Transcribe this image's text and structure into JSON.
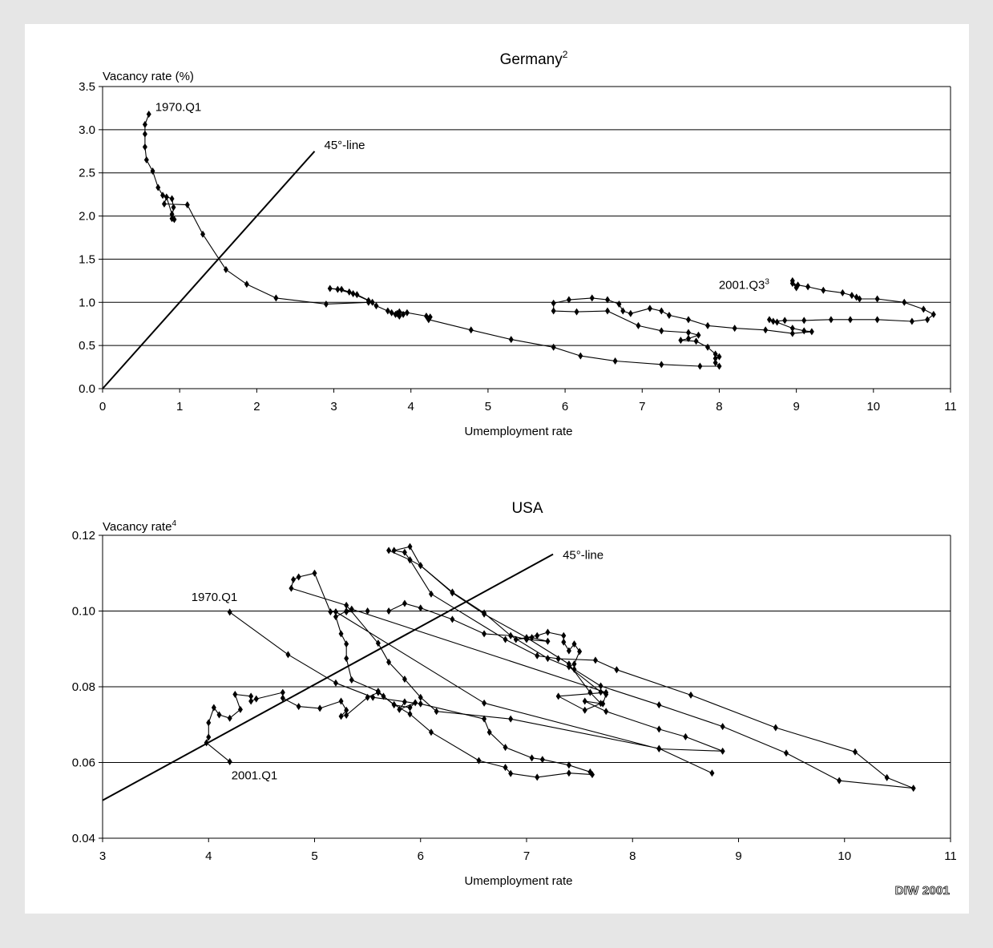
{
  "credit": "DIW 2001",
  "chart_data": [
    {
      "type": "line",
      "title": "Germany",
      "title_sup": "2",
      "xlabel": "Umemployment rate",
      "ylabel": "Vacancy rate (%)",
      "ylabel_sup": "",
      "xlim": [
        0,
        11
      ],
      "ylim": [
        0,
        3.5
      ],
      "xticks": [
        "0",
        "1",
        "2",
        "3",
        "4",
        "5",
        "6",
        "7",
        "8",
        "9",
        "10",
        "11"
      ],
      "yticks": [
        "0.0",
        "0.5",
        "1.0",
        "1.5",
        "2.0",
        "2.5",
        "3.0",
        "3.5"
      ],
      "grid": "horizontal",
      "reference_line": {
        "label": "45°-line",
        "from": [
          0,
          0
        ],
        "to": [
          2.75,
          2.75
        ]
      },
      "annotations": [
        {
          "text": "1970.Q1",
          "sup": "",
          "at": [
            0.6,
            3.18
          ]
        },
        {
          "text": "2001.Q3",
          "sup": "3",
          "at": [
            8.95,
            1.25
          ]
        }
      ],
      "series": [
        {
          "points": [
            [
              0.6,
              3.18
            ],
            [
              0.55,
              3.06
            ],
            [
              0.55,
              2.95
            ],
            [
              0.55,
              2.8
            ],
            [
              0.57,
              2.65
            ],
            [
              0.65,
              2.52
            ],
            [
              0.72,
              2.33
            ],
            [
              0.78,
              2.24
            ],
            [
              0.9,
              2.2
            ],
            [
              0.92,
              2.1
            ],
            [
              0.9,
              1.97
            ],
            [
              0.93,
              1.96
            ],
            [
              0.9,
              2.02
            ],
            [
              0.83,
              2.22
            ],
            [
              0.8,
              2.14
            ],
            [
              1.1,
              2.13
            ],
            [
              1.3,
              1.79
            ],
            [
              1.6,
              1.38
            ],
            [
              1.87,
              1.21
            ],
            [
              2.25,
              1.05
            ],
            [
              2.9,
              0.98
            ],
            [
              3.45,
              1.0
            ],
            [
              3.5,
              1.0
            ],
            [
              3.3,
              1.09
            ],
            [
              3.2,
              1.12
            ],
            [
              3.1,
              1.15
            ],
            [
              2.95,
              1.16
            ],
            [
              3.05,
              1.15
            ],
            [
              3.25,
              1.1
            ],
            [
              3.45,
              1.02
            ],
            [
              3.55,
              0.96
            ],
            [
              3.7,
              0.9
            ],
            [
              3.8,
              0.86
            ],
            [
              3.85,
              0.84
            ],
            [
              3.75,
              0.88
            ],
            [
              3.82,
              0.87
            ],
            [
              3.9,
              0.86
            ],
            [
              3.85,
              0.89
            ],
            [
              3.95,
              0.88
            ],
            [
              4.2,
              0.84
            ],
            [
              4.25,
              0.83
            ],
            [
              4.23,
              0.8
            ],
            [
              4.78,
              0.68
            ],
            [
              5.3,
              0.57
            ],
            [
              5.85,
              0.48
            ],
            [
              6.2,
              0.38
            ],
            [
              6.65,
              0.32
            ],
            [
              7.25,
              0.28
            ],
            [
              7.75,
              0.26
            ],
            [
              8.0,
              0.26
            ],
            [
              7.95,
              0.3
            ],
            [
              7.95,
              0.35
            ],
            [
              8.0,
              0.37
            ],
            [
              7.95,
              0.4
            ],
            [
              7.85,
              0.48
            ],
            [
              7.7,
              0.55
            ],
            [
              7.5,
              0.56
            ],
            [
              7.6,
              0.58
            ],
            [
              7.73,
              0.62
            ],
            [
              7.6,
              0.65
            ],
            [
              7.25,
              0.67
            ],
            [
              6.95,
              0.73
            ],
            [
              6.55,
              0.9
            ],
            [
              6.15,
              0.89
            ],
            [
              5.85,
              0.9
            ],
            [
              5.85,
              0.99
            ],
            [
              6.05,
              1.03
            ],
            [
              6.35,
              1.05
            ],
            [
              6.55,
              1.03
            ],
            [
              6.7,
              0.98
            ],
            [
              6.75,
              0.9
            ],
            [
              6.85,
              0.87
            ],
            [
              7.1,
              0.93
            ],
            [
              7.25,
              0.9
            ],
            [
              7.35,
              0.85
            ],
            [
              7.6,
              0.8
            ],
            [
              7.85,
              0.73
            ],
            [
              8.2,
              0.7
            ],
            [
              8.6,
              0.68
            ],
            [
              8.95,
              0.64
            ],
            [
              9.2,
              0.66
            ],
            [
              9.1,
              0.67
            ],
            [
              8.95,
              0.7
            ],
            [
              8.75,
              0.77
            ],
            [
              8.65,
              0.8
            ],
            [
              8.7,
              0.78
            ],
            [
              8.85,
              0.79
            ],
            [
              9.1,
              0.79
            ],
            [
              9.45,
              0.8
            ],
            [
              9.7,
              0.8
            ],
            [
              10.05,
              0.8
            ],
            [
              10.5,
              0.78
            ],
            [
              10.7,
              0.8
            ],
            [
              10.78,
              0.86
            ],
            [
              10.65,
              0.92
            ],
            [
              10.4,
              1.0
            ],
            [
              10.05,
              1.04
            ],
            [
              9.82,
              1.04
            ],
            [
              9.78,
              1.06
            ],
            [
              9.72,
              1.08
            ],
            [
              9.6,
              1.11
            ],
            [
              9.35,
              1.14
            ],
            [
              9.15,
              1.18
            ],
            [
              9.02,
              1.2
            ],
            [
              8.95,
              1.22
            ],
            [
              9.0,
              1.17
            ],
            [
              8.95,
              1.25
            ]
          ]
        }
      ]
    },
    {
      "type": "line",
      "title": "USA",
      "title_sup": "",
      "xlabel": "Umemployment rate",
      "ylabel": "Vacancy rate",
      "ylabel_sup": "4",
      "xlim": [
        3,
        11
      ],
      "ylim": [
        0.04,
        0.12
      ],
      "xticks": [
        "3",
        "4",
        "5",
        "6",
        "7",
        "8",
        "9",
        "10",
        "11"
      ],
      "yticks": [
        "0.04",
        "0.06",
        "0.08",
        "0.10",
        "0.12"
      ],
      "grid": "horizontal",
      "reference_line": {
        "label": "45°-line",
        "from": [
          3,
          0.05
        ],
        "to": [
          7.25,
          0.115
        ]
      },
      "annotations": [
        {
          "text": "1970.Q1",
          "sup": "",
          "at": [
            4.2,
            0.0997
          ]
        },
        {
          "text": "2001.Q1",
          "sup": "",
          "at": [
            4.2,
            0.0602
          ]
        }
      ],
      "series": [
        {
          "points": [
            [
              4.2,
              0.0997
            ],
            [
              4.75,
              0.0885
            ],
            [
              5.2,
              0.081
            ],
            [
              5.55,
              0.0772
            ],
            [
              6.0,
              0.0755
            ],
            [
              6.6,
              0.0715
            ],
            [
              6.65,
              0.068
            ],
            [
              6.8,
              0.064
            ],
            [
              7.05,
              0.0612
            ],
            [
              7.15,
              0.0608
            ],
            [
              7.4,
              0.0593
            ],
            [
              7.6,
              0.0575
            ],
            [
              7.62,
              0.0568
            ],
            [
              7.4,
              0.0572
            ],
            [
              7.1,
              0.0561
            ],
            [
              6.85,
              0.0571
            ],
            [
              6.8,
              0.0587
            ],
            [
              6.55,
              0.0605
            ],
            [
              6.1,
              0.068
            ],
            [
              5.9,
              0.0728
            ],
            [
              5.75,
              0.0753
            ],
            [
              5.6,
              0.0785
            ],
            [
              5.5,
              0.0772
            ],
            [
              5.3,
              0.0725
            ],
            [
              5.25,
              0.0722
            ],
            [
              5.3,
              0.0738
            ],
            [
              5.25,
              0.0762
            ],
            [
              5.05,
              0.0743
            ],
            [
              4.85,
              0.0748
            ],
            [
              4.7,
              0.077
            ],
            [
              4.7,
              0.0785
            ],
            [
              4.45,
              0.0768
            ],
            [
              4.4,
              0.0762
            ],
            [
              4.4,
              0.0775
            ],
            [
              4.25,
              0.078
            ],
            [
              4.3,
              0.074
            ],
            [
              4.2,
              0.0717
            ],
            [
              4.1,
              0.0726
            ],
            [
              4.05,
              0.0745
            ],
            [
              4.0,
              0.0705
            ],
            [
              4.0,
              0.0667
            ],
            [
              3.98,
              0.0652
            ],
            [
              4.2,
              0.0602
            ]
          ]
        },
        {
          "points": [
            [
              5.7,
              0.116
            ],
            [
              5.9,
              0.1135
            ],
            [
              6.0,
              0.112
            ],
            [
              6.3,
              0.105
            ],
            [
              6.6,
              0.0995
            ],
            [
              6.85,
              0.0935
            ],
            [
              7.0,
              0.0925
            ],
            [
              7.2,
              0.092
            ],
            [
              7.05,
              0.093
            ],
            [
              6.9,
              0.0925
            ],
            [
              7.1,
              0.0935
            ],
            [
              7.2,
              0.0944
            ],
            [
              7.35,
              0.0935
            ],
            [
              7.35,
              0.0918
            ],
            [
              7.4,
              0.0895
            ],
            [
              7.45,
              0.0913
            ],
            [
              7.5,
              0.0893
            ],
            [
              7.45,
              0.086
            ],
            [
              7.4,
              0.0853
            ],
            [
              7.7,
              0.0786
            ],
            [
              7.75,
              0.078
            ],
            [
              7.72,
              0.0755
            ],
            [
              7.55,
              0.0762
            ],
            [
              7.75,
              0.0735
            ],
            [
              8.25,
              0.0688
            ],
            [
              8.5,
              0.0668
            ],
            [
              8.85,
              0.063
            ],
            [
              8.25,
              0.0636
            ],
            [
              6.6,
              0.0757
            ],
            [
              5.2,
              0.0998
            ],
            [
              5.15,
              0.0998
            ],
            [
              5.0,
              0.11
            ],
            [
              4.85,
              0.109
            ],
            [
              4.8,
              0.1083
            ],
            [
              4.78,
              0.106
            ],
            [
              5.3,
              0.1015
            ],
            [
              5.6,
              0.0915
            ],
            [
              5.7,
              0.0865
            ],
            [
              5.85,
              0.082
            ],
            [
              6.0,
              0.0772
            ],
            [
              6.15,
              0.0735
            ],
            [
              6.85,
              0.0715
            ],
            [
              8.25,
              0.0637
            ],
            [
              8.75,
              0.0572
            ]
          ]
        },
        {
          "points": [
            [
              5.3,
              0.0998
            ],
            [
              5.5,
              0.1
            ],
            [
              5.7,
              0.1
            ],
            [
              5.85,
              0.102
            ],
            [
              6.0,
              0.1008
            ],
            [
              6.3,
              0.0978
            ],
            [
              6.6,
              0.094
            ],
            [
              6.85,
              0.0935
            ],
            [
              7.2,
              0.0875
            ],
            [
              7.45,
              0.0846
            ],
            [
              7.7,
              0.0802
            ],
            [
              8.25,
              0.0752
            ],
            [
              8.85,
              0.0695
            ],
            [
              9.45,
              0.0625
            ],
            [
              9.95,
              0.0552
            ],
            [
              10.65,
              0.0532
            ],
            [
              10.4,
              0.056
            ],
            [
              10.1,
              0.0628
            ],
            [
              9.35,
              0.0692
            ],
            [
              8.55,
              0.0778
            ],
            [
              7.85,
              0.0845
            ],
            [
              7.65,
              0.087
            ],
            [
              7.3,
              0.0874
            ],
            [
              7.1,
              0.0882
            ],
            [
              6.8,
              0.0925
            ],
            [
              6.1,
              0.1045
            ],
            [
              5.9,
              0.1135
            ],
            [
              5.85,
              0.1155
            ],
            [
              5.75,
              0.116
            ],
            [
              5.9,
              0.117
            ],
            [
              6.0,
              0.112
            ],
            [
              6.3,
              0.1048
            ],
            [
              6.6,
              0.0992
            ],
            [
              7.0,
              0.093
            ],
            [
              7.4,
              0.086
            ],
            [
              7.6,
              0.0785
            ],
            [
              7.7,
              0.0756
            ],
            [
              7.55,
              0.0738
            ],
            [
              7.3,
              0.0775
            ],
            [
              7.75,
              0.0785
            ],
            [
              5.35,
              0.1005
            ],
            [
              5.3,
              0.1
            ],
            [
              5.2,
              0.0985
            ],
            [
              5.25,
              0.094
            ],
            [
              5.3,
              0.0913
            ],
            [
              5.3,
              0.0875
            ],
            [
              5.35,
              0.0818
            ],
            [
              5.6,
              0.0788
            ],
            [
              5.65,
              0.0775
            ],
            [
              5.75,
              0.0752
            ],
            [
              5.9,
              0.0745
            ],
            [
              5.95,
              0.0758
            ],
            [
              5.8,
              0.074
            ],
            [
              5.85,
              0.076
            ]
          ]
        }
      ]
    }
  ]
}
